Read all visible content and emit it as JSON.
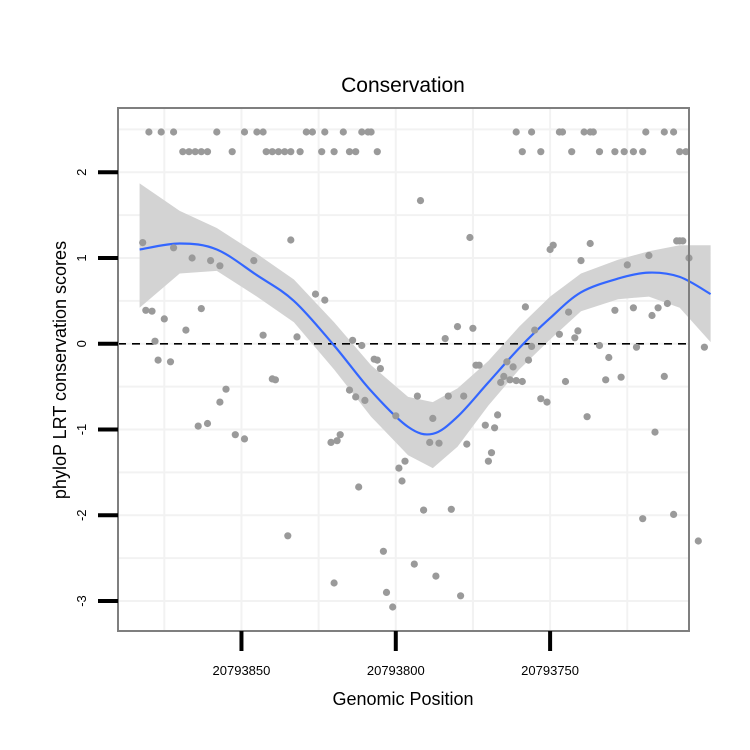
{
  "chart_data": {
    "type": "scatter",
    "title": "Conservation",
    "xlabel": "Genomic Position",
    "ylabel": "phyloP LRT conservation scores",
    "x_axis_reversed": true,
    "xlim": [
      20793890,
      20793705
    ],
    "ylim": [
      -3.35,
      2.75
    ],
    "x_ticks": [
      {
        "value": 20793850,
        "label": "20793850"
      },
      {
        "value": 20793800,
        "label": "20793800"
      },
      {
        "value": 20793750,
        "label": "20793750"
      }
    ],
    "y_ticks": [
      {
        "value": 2,
        "label": "2"
      },
      {
        "value": 1,
        "label": "1"
      },
      {
        "value": 0,
        "label": "0"
      },
      {
        "value": -1,
        "label": "-1"
      },
      {
        "value": -2,
        "label": "-2"
      },
      {
        "value": -3,
        "label": "-3"
      }
    ],
    "grid": true,
    "reference_line": {
      "y": 0,
      "style": "dashed"
    },
    "colors": {
      "points": "#9a9a9a",
      "smooth_line": "#3366ff",
      "ribbon": "#d3d3d3",
      "grid": "#f2f2f2",
      "panel_border": "#7f7f7f"
    },
    "points": [
      [
        20793880,
        2.47
      ],
      [
        20793876,
        2.47
      ],
      [
        20793872,
        2.47
      ],
      [
        20793869,
        2.24
      ],
      [
        20793867,
        2.24
      ],
      [
        20793865,
        2.24
      ],
      [
        20793863,
        2.24
      ],
      [
        20793861,
        2.24
      ],
      [
        20793858,
        2.47
      ],
      [
        20793853,
        2.24
      ],
      [
        20793849,
        2.47
      ],
      [
        20793845,
        2.47
      ],
      [
        20793843,
        2.47
      ],
      [
        20793842,
        2.24
      ],
      [
        20793840,
        2.24
      ],
      [
        20793838,
        2.24
      ],
      [
        20793836,
        2.24
      ],
      [
        20793834,
        2.24
      ],
      [
        20793831,
        2.24
      ],
      [
        20793829,
        2.47
      ],
      [
        20793827,
        2.47
      ],
      [
        20793824,
        2.24
      ],
      [
        20793823,
        2.47
      ],
      [
        20793820,
        2.24
      ],
      [
        20793817,
        2.47
      ],
      [
        20793815,
        2.24
      ],
      [
        20793813,
        2.24
      ],
      [
        20793811,
        2.47
      ],
      [
        20793809,
        2.47
      ],
      [
        20793808,
        2.47
      ],
      [
        20793806,
        2.24
      ],
      [
        20793761,
        2.47
      ],
      [
        20793759,
        2.24
      ],
      [
        20793756,
        2.47
      ],
      [
        20793753,
        2.24
      ],
      [
        20793747,
        2.47
      ],
      [
        20793746,
        2.47
      ],
      [
        20793743,
        2.24
      ],
      [
        20793739,
        2.47
      ],
      [
        20793737,
        2.47
      ],
      [
        20793736,
        2.47
      ],
      [
        20793734,
        2.24
      ],
      [
        20793729,
        2.24
      ],
      [
        20793726,
        2.24
      ],
      [
        20793723,
        2.24
      ],
      [
        20793720,
        2.24
      ],
      [
        20793719,
        2.47
      ],
      [
        20793713,
        2.47
      ],
      [
        20793710,
        2.47
      ],
      [
        20793708,
        2.24
      ],
      [
        20793706,
        2.24
      ],
      [
        20793882,
        1.18
      ],
      [
        20793881,
        0.39
      ],
      [
        20793879,
        0.38
      ],
      [
        20793878,
        0.03
      ],
      [
        20793877,
        -0.19
      ],
      [
        20793875,
        0.29
      ],
      [
        20793873,
        -0.21
      ],
      [
        20793872,
        1.12
      ],
      [
        20793868,
        0.16
      ],
      [
        20793866,
        1.0
      ],
      [
        20793864,
        -0.96
      ],
      [
        20793863,
        0.41
      ],
      [
        20793861,
        -0.93
      ],
      [
        20793860,
        0.97
      ],
      [
        20793857,
        0.91
      ],
      [
        20793857,
        -0.68
      ],
      [
        20793855,
        -0.53
      ],
      [
        20793852,
        -1.06
      ],
      [
        20793849,
        -1.11
      ],
      [
        20793846,
        0.97
      ],
      [
        20793843,
        0.1
      ],
      [
        20793840,
        -0.41
      ],
      [
        20793839,
        -0.42
      ],
      [
        20793835,
        -2.24
      ],
      [
        20793834,
        1.21
      ],
      [
        20793832,
        0.08
      ],
      [
        20793826,
        0.58
      ],
      [
        20793823,
        0.51
      ],
      [
        20793821,
        -1.15
      ],
      [
        20793820,
        -2.79
      ],
      [
        20793819,
        -1.13
      ],
      [
        20793818,
        -1.06
      ],
      [
        20793815,
        -0.54
      ],
      [
        20793814,
        0.04
      ],
      [
        20793813,
        -0.62
      ],
      [
        20793812,
        -1.67
      ],
      [
        20793811,
        -0.02
      ],
      [
        20793810,
        -0.66
      ],
      [
        20793807,
        -0.18
      ],
      [
        20793806,
        -0.19
      ],
      [
        20793805,
        -0.29
      ],
      [
        20793804,
        -2.42
      ],
      [
        20793803,
        -2.9
      ],
      [
        20793801,
        -3.07
      ],
      [
        20793800,
        -0.84
      ],
      [
        20793799,
        -1.45
      ],
      [
        20793798,
        -1.6
      ],
      [
        20793797,
        -1.37
      ],
      [
        20793794,
        -2.57
      ],
      [
        20793793,
        -0.61
      ],
      [
        20793792,
        1.67
      ],
      [
        20793791,
        -1.94
      ],
      [
        20793789,
        -1.15
      ],
      [
        20793788,
        -0.87
      ],
      [
        20793787,
        -2.71
      ],
      [
        20793786,
        -1.16
      ],
      [
        20793784,
        0.06
      ],
      [
        20793783,
        -0.61
      ],
      [
        20793782,
        -1.93
      ],
      [
        20793780,
        0.2
      ],
      [
        20793779,
        -2.94
      ],
      [
        20793778,
        -0.61
      ],
      [
        20793777,
        -1.17
      ],
      [
        20793776,
        1.24
      ],
      [
        20793775,
        0.18
      ],
      [
        20793774,
        -0.25
      ],
      [
        20793773,
        -0.25
      ],
      [
        20793771,
        -0.95
      ],
      [
        20793770,
        -1.37
      ],
      [
        20793769,
        -1.27
      ],
      [
        20793768,
        -0.98
      ],
      [
        20793767,
        -0.83
      ],
      [
        20793766,
        -0.45
      ],
      [
        20793765,
        -0.38
      ],
      [
        20793764,
        -0.21
      ],
      [
        20793763,
        -0.42
      ],
      [
        20793762,
        -0.27
      ],
      [
        20793761,
        -0.43
      ],
      [
        20793759,
        -0.44
      ],
      [
        20793758,
        0.43
      ],
      [
        20793757,
        -0.19
      ],
      [
        20793756,
        -0.03
      ],
      [
        20793755,
        0.16
      ],
      [
        20793753,
        -0.64
      ],
      [
        20793751,
        -0.68
      ],
      [
        20793750,
        1.1
      ],
      [
        20793749,
        1.15
      ],
      [
        20793747,
        0.11
      ],
      [
        20793745,
        -0.44
      ],
      [
        20793744,
        0.37
      ],
      [
        20793742,
        0.07
      ],
      [
        20793741,
        0.15
      ],
      [
        20793740,
        0.97
      ],
      [
        20793738,
        -0.85
      ],
      [
        20793737,
        1.17
      ],
      [
        20793734,
        -0.02
      ],
      [
        20793732,
        -0.42
      ],
      [
        20793731,
        -0.16
      ],
      [
        20793729,
        0.39
      ],
      [
        20793727,
        -0.39
      ],
      [
        20793725,
        0.92
      ],
      [
        20793723,
        0.42
      ],
      [
        20793722,
        -0.04
      ],
      [
        20793720,
        -2.04
      ],
      [
        20793718,
        1.03
      ],
      [
        20793717,
        0.33
      ],
      [
        20793716,
        -1.03
      ],
      [
        20793715,
        0.42
      ],
      [
        20793713,
        -0.38
      ],
      [
        20793712,
        0.47
      ],
      [
        20793710,
        -1.99
      ],
      [
        20793709,
        1.2
      ],
      [
        20793708,
        1.2
      ],
      [
        20793707,
        1.2
      ],
      [
        20793705,
        1.0
      ],
      [
        20793702,
        -2.3
      ],
      [
        20793700,
        -0.04
      ]
    ],
    "smooth": [
      [
        20793883,
        1.1
      ],
      [
        20793870,
        1.17
      ],
      [
        20793858,
        1.1
      ],
      [
        20793845,
        0.8
      ],
      [
        20793833,
        0.5
      ],
      [
        20793820,
        -0.02
      ],
      [
        20793808,
        -0.55
      ],
      [
        20793796,
        -0.97
      ],
      [
        20793788,
        -1.05
      ],
      [
        20793780,
        -0.85
      ],
      [
        20793770,
        -0.45
      ],
      [
        20793760,
        -0.05
      ],
      [
        20793750,
        0.3
      ],
      [
        20793740,
        0.6
      ],
      [
        20793728,
        0.76
      ],
      [
        20793718,
        0.83
      ],
      [
        20793708,
        0.78
      ],
      [
        20793698,
        0.58
      ]
    ],
    "ribbon_upper": [
      [
        20793883,
        1.87
      ],
      [
        20793870,
        1.55
      ],
      [
        20793858,
        1.35
      ],
      [
        20793845,
        1.05
      ],
      [
        20793833,
        0.75
      ],
      [
        20793820,
        0.25
      ],
      [
        20793808,
        -0.25
      ],
      [
        20793796,
        -0.62
      ],
      [
        20793788,
        -0.68
      ],
      [
        20793780,
        -0.52
      ],
      [
        20793770,
        -0.2
      ],
      [
        20793760,
        0.2
      ],
      [
        20793750,
        0.55
      ],
      [
        20793740,
        0.82
      ],
      [
        20793728,
        0.98
      ],
      [
        20793718,
        1.08
      ],
      [
        20793708,
        1.15
      ],
      [
        20793698,
        1.15
      ]
    ],
    "ribbon_lower": [
      [
        20793883,
        0.42
      ],
      [
        20793870,
        0.82
      ],
      [
        20793858,
        0.85
      ],
      [
        20793845,
        0.55
      ],
      [
        20793833,
        0.25
      ],
      [
        20793820,
        -0.3
      ],
      [
        20793808,
        -0.85
      ],
      [
        20793796,
        -1.3
      ],
      [
        20793788,
        -1.45
      ],
      [
        20793780,
        -1.2
      ],
      [
        20793770,
        -0.72
      ],
      [
        20793760,
        -0.3
      ],
      [
        20793750,
        0.05
      ],
      [
        20793740,
        0.38
      ],
      [
        20793728,
        0.52
      ],
      [
        20793718,
        0.55
      ],
      [
        20793708,
        0.42
      ],
      [
        20793698,
        0.02
      ]
    ]
  }
}
